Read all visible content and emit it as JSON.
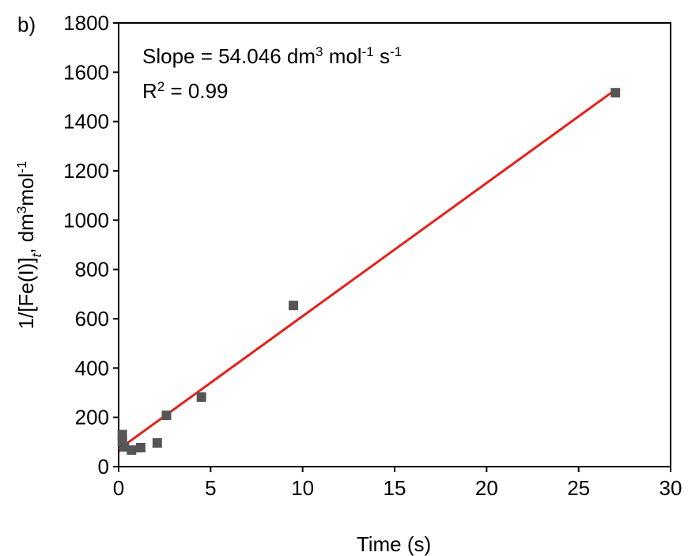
{
  "chart_data": {
    "type": "scatter",
    "panel_label": "b)",
    "x_label": "Time (s)",
    "y_label_parts": [
      "1/[Fe(I)]",
      "t",
      ", dm",
      "3",
      "mol",
      "-1"
    ],
    "annotations": [
      [
        "Slope = 54.046 dm",
        "3",
        " mol",
        "-1",
        " s",
        "-1"
      ],
      [
        "R",
        "2",
        " = 0.99"
      ]
    ],
    "series": [
      {
        "color": "#555555",
        "x": [
          0.2,
          0.2,
          0.3,
          0.7,
          1.2,
          2.1,
          2.6,
          4.5,
          9.5,
          27
        ],
        "values": [
          130,
          100,
          80,
          67,
          77,
          96,
          208,
          282,
          654,
          1517
        ]
      }
    ],
    "fit_line": {
      "color": "#e3221c",
      "x": [
        0,
        27
      ],
      "values": [
        70,
        1529
      ]
    },
    "xlim": [
      0,
      30
    ],
    "xticks": [
      0,
      5,
      10,
      15,
      20,
      25,
      30
    ],
    "ylim": [
      0,
      1800
    ],
    "yticks": [
      0,
      200,
      400,
      600,
      800,
      1000,
      1200,
      1400,
      1600,
      1800
    ]
  }
}
